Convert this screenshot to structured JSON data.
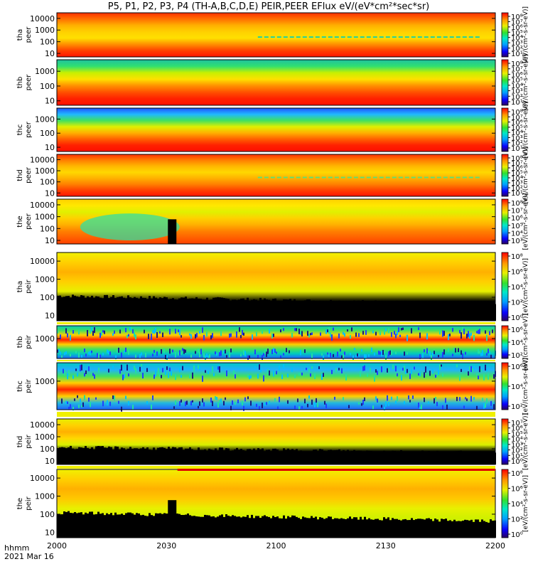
{
  "chart_data": {
    "type": "heatmap",
    "title": "P5, P1, P2, P3, P4 (TH-A,B,C,D,E) PEIR,PEER EFlux eV/(eV*cm²*sec*sr)",
    "x_ticks": [
      "2000",
      "2030",
      "2100",
      "2130",
      "2200"
    ],
    "x_range": [
      "20:00",
      "22:00"
    ],
    "footer": {
      "time_format": "hhmm",
      "date": "2021 Mar 16"
    },
    "colorbar_unit": "[eV/(cm²-s-sr-eV)]",
    "scale": "log",
    "panels": [
      {
        "id": "tha-peer",
        "label_probe": "tha",
        "label_inst": "peer",
        "y_ticks": [
          "10000",
          "1000",
          "100",
          "10"
        ],
        "y_range": [
          5,
          30000
        ],
        "cb_ticks": [
          "10⁸",
          "10⁷",
          "10⁶",
          "10⁵",
          "10⁴",
          "10³",
          "10²",
          "10¹"
        ],
        "bands": [
          "#ff3000",
          "#ff7000",
          "#ffb000",
          "#ffd000",
          "#ffe000",
          "#ff9000",
          "#ff4000",
          "#ff1500"
        ],
        "trace": "#20d0a0"
      },
      {
        "id": "thb-peer",
        "label_probe": "thb",
        "label_inst": "peer",
        "y_ticks": [
          "1000",
          "100",
          "10"
        ],
        "y_range": [
          5,
          6000
        ],
        "cb_ticks": [
          "10⁸",
          "10⁷",
          "10⁶",
          "10⁵",
          "10⁴",
          "10³",
          "10²",
          "10¹"
        ],
        "bands": [
          "#20c0a0",
          "#30e070",
          "#c8f000",
          "#ffe000",
          "#ff9000",
          "#ff5000",
          "#ff2000",
          "#ff1000"
        ]
      },
      {
        "id": "thc-peer",
        "label_probe": "thc",
        "label_inst": "peer",
        "y_ticks": [
          "1000",
          "100",
          "10"
        ],
        "y_range": [
          5,
          6000
        ],
        "cb_ticks": [
          "10⁸",
          "10⁷",
          "10⁶",
          "10⁵",
          "10⁴",
          "10³",
          "10²",
          "10¹"
        ],
        "bands": [
          "#2050ff",
          "#20b8ff",
          "#40e060",
          "#e0f000",
          "#ffb000",
          "#ff6000",
          "#ff2000",
          "#ff1000"
        ]
      },
      {
        "id": "thd-peer",
        "label_probe": "thd",
        "label_inst": "peer",
        "y_ticks": [
          "10000",
          "1000",
          "100",
          "10"
        ],
        "y_range": [
          5,
          30000
        ],
        "cb_ticks": [
          "10⁸",
          "10⁷",
          "10⁶",
          "10⁵",
          "10⁴",
          "10³",
          "10²",
          "10¹"
        ],
        "bands": [
          "#ff3000",
          "#ff8000",
          "#ffb800",
          "#ffd800",
          "#ffb000",
          "#ff8000",
          "#ff4000",
          "#ff1500"
        ],
        "trace": "#60e070"
      },
      {
        "id": "the-peer",
        "label_probe": "the",
        "label_inst": "peer",
        "y_ticks": [
          "10000",
          "1000",
          "100",
          "10"
        ],
        "y_range": [
          5,
          30000
        ],
        "cb_ticks": [
          "10⁸",
          "10⁷",
          "10⁶",
          "10⁵",
          "10⁴",
          "10³"
        ],
        "bands": [
          "#ffd000",
          "#ffe800",
          "#e0f000",
          "#ffd000",
          "#ffb000",
          "#ff8000",
          "#ff6000",
          "#ff4000"
        ],
        "blob": "#30e0a0",
        "gap_at": "2030"
      },
      {
        "id": "tha-peir",
        "label_probe": "tha",
        "label_inst": "peir",
        "y_ticks": [
          "10000",
          "1000",
          "100",
          "10"
        ],
        "y_range": [
          5,
          30000
        ],
        "cb_ticks": [
          "10⁸",
          "10⁶",
          "10⁴",
          "10²",
          "10⁰"
        ],
        "bands": [
          "#f0f000",
          "#ffd000",
          "#ffb000",
          "#ffd000",
          "#e8f000",
          "#000000",
          "#000000",
          "#000000"
        ],
        "noise": true
      },
      {
        "id": "thb-peir",
        "label_probe": "thb",
        "label_inst": "peir",
        "y_ticks": [
          "1000"
        ],
        "y_range": [
          40,
          8000
        ],
        "cb_ticks": [
          "10⁶",
          "10⁴",
          "10²"
        ],
        "bands": [
          "#00c8c0",
          "#40e060",
          "#ffd000",
          "#ff2000",
          "#ffd000",
          "#40e060",
          "#00c8c0",
          "#2060ff"
        ],
        "stripes": true
      },
      {
        "id": "thc-peir",
        "label_probe": "thc",
        "label_inst": "peir",
        "y_ticks": [
          "1000"
        ],
        "y_range": [
          40,
          8000
        ],
        "cb_ticks": [
          "10⁶",
          "10⁴",
          "10²"
        ],
        "bands": [
          "#00c8c0",
          "#20b0ff",
          "#40e060",
          "#ffd000",
          "#ff2000",
          "#ffd000",
          "#20b8e0",
          "#2060ff"
        ],
        "stripes": true
      },
      {
        "id": "thd-peir",
        "label_probe": "thd",
        "label_inst": "peir",
        "y_ticks": [
          "10000",
          "1000",
          "100",
          "10"
        ],
        "y_range": [
          5,
          30000
        ],
        "cb_ticks": [
          "10⁷",
          "10⁶",
          "10⁵",
          "10⁴",
          "10³",
          "10²",
          "10¹",
          "10⁰"
        ],
        "bands": [
          "#e8f000",
          "#ffd000",
          "#ffb000",
          "#ffd800",
          "#d8f000",
          "#000000",
          "#000000",
          "#000000"
        ],
        "noise": true
      },
      {
        "id": "the-peir",
        "label_probe": "the",
        "label_inst": "peir",
        "y_ticks": [
          "10000",
          "1000",
          "100",
          "10"
        ],
        "y_range": [
          5,
          30000
        ],
        "cb_ticks": [
          "10⁸",
          "10⁶",
          "10⁴",
          "10²",
          "10⁰"
        ],
        "bands": [
          "#f0f000",
          "#ffd000",
          "#ffb000",
          "#ffc800",
          "#e8f000",
          "#d0f000",
          "#c0f000",
          "#000000"
        ],
        "noise": true,
        "gap_at": "2030"
      }
    ]
  }
}
